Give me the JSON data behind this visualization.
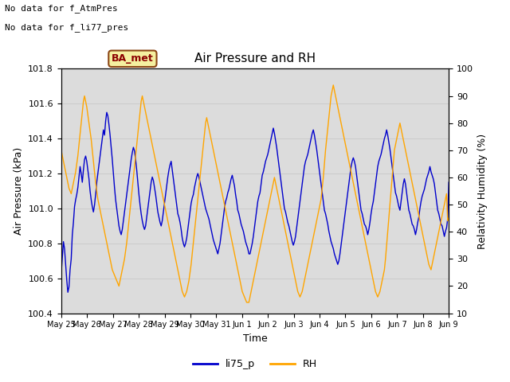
{
  "title": "Air Pressure and RH",
  "xlabel": "Time",
  "ylabel_left": "Air Pressure (kPa)",
  "ylabel_right": "Relativity Humidity (%)",
  "text_no_data_1": "No data for f_AtmPres",
  "text_no_data_2": "No data for f_li77_pres",
  "ba_met_label": "BA_met",
  "ylim_left": [
    100.4,
    101.8
  ],
  "ylim_right": [
    10,
    100
  ],
  "yticks_left": [
    100.4,
    100.6,
    100.8,
    101.0,
    101.2,
    101.4,
    101.6,
    101.8
  ],
  "yticks_right": [
    10,
    20,
    30,
    40,
    50,
    60,
    70,
    80,
    90,
    100
  ],
  "grid_color": "#cccccc",
  "bg_color_inner": "#dcdcdc",
  "bg_color_outer": "#f0f0f0",
  "line_color_blue": "#0000cc",
  "line_color_orange": "#ffa500",
  "legend_labels": [
    "li75_p",
    "RH"
  ],
  "n_days": 15,
  "xtick_labels": [
    "May 25",
    "May 26",
    "May 27",
    "May 28",
    "May 29",
    "May 30",
    "May 31",
    "Jun 1",
    "Jun 2",
    "Jun 3",
    "Jun 4",
    "Jun 5",
    "Jun 6",
    "Jun 7",
    "Jun 8",
    "Jun 9"
  ],
  "pressure_data": [
    100.63,
    100.72,
    100.81,
    100.77,
    100.68,
    100.59,
    100.52,
    100.55,
    100.65,
    100.71,
    100.85,
    100.92,
    101.01,
    101.05,
    101.08,
    101.12,
    101.18,
    101.24,
    101.2,
    101.15,
    101.22,
    101.28,
    101.3,
    101.27,
    101.22,
    101.17,
    101.1,
    101.05,
    101.01,
    100.98,
    101.02,
    101.08,
    101.15,
    101.2,
    101.25,
    101.3,
    101.35,
    101.4,
    101.45,
    101.42,
    101.5,
    101.55,
    101.53,
    101.48,
    101.42,
    101.35,
    101.28,
    101.2,
    101.12,
    101.05,
    101.0,
    100.95,
    100.9,
    100.87,
    100.85,
    100.88,
    100.93,
    100.98,
    101.03,
    101.08,
    101.13,
    101.18,
    101.23,
    101.28,
    101.32,
    101.35,
    101.33,
    101.28,
    101.22,
    101.15,
    101.08,
    101.02,
    100.97,
    100.93,
    100.9,
    100.88,
    100.9,
    100.95,
    101.0,
    101.05,
    101.1,
    101.15,
    101.18,
    101.16,
    101.12,
    101.08,
    101.03,
    100.98,
    100.95,
    100.92,
    100.9,
    100.93,
    100.98,
    101.03,
    101.08,
    101.13,
    101.18,
    101.22,
    101.25,
    101.27,
    101.22,
    101.17,
    101.12,
    101.07,
    101.02,
    100.97,
    100.95,
    100.92,
    100.88,
    100.83,
    100.8,
    100.78,
    100.8,
    100.83,
    100.88,
    100.93,
    100.98,
    101.03,
    101.06,
    101.08,
    101.12,
    101.15,
    101.18,
    101.2,
    101.18,
    101.15,
    101.12,
    101.09,
    101.06,
    101.03,
    101.0,
    100.98,
    100.96,
    100.94,
    100.91,
    100.88,
    100.85,
    100.82,
    100.8,
    100.78,
    100.76,
    100.74,
    100.77,
    100.8,
    100.85,
    100.9,
    100.95,
    101.0,
    101.04,
    101.06,
    101.09,
    101.11,
    101.14,
    101.17,
    101.19,
    101.16,
    101.13,
    101.08,
    101.04,
    100.99,
    100.97,
    100.94,
    100.91,
    100.89,
    100.87,
    100.84,
    100.81,
    100.79,
    100.77,
    100.74,
    100.74,
    100.77,
    100.8,
    100.84,
    100.89,
    100.94,
    100.99,
    101.04,
    101.07,
    101.09,
    101.14,
    101.19,
    101.21,
    101.24,
    101.27,
    101.29,
    101.31,
    101.34,
    101.37,
    101.4,
    101.43,
    101.46,
    101.43,
    101.39,
    101.35,
    101.3,
    101.25,
    101.2,
    101.15,
    101.1,
    101.05,
    101.0,
    100.98,
    100.95,
    100.92,
    100.9,
    100.87,
    100.84,
    100.81,
    100.79,
    100.81,
    100.84,
    100.89,
    100.94,
    100.99,
    101.04,
    101.09,
    101.14,
    101.19,
    101.24,
    101.27,
    101.29,
    101.31,
    101.34,
    101.37,
    101.4,
    101.43,
    101.45,
    101.42,
    101.38,
    101.34,
    101.29,
    101.24,
    101.19,
    101.14,
    101.09,
    101.04,
    100.99,
    100.97,
    100.94,
    100.91,
    100.87,
    100.84,
    100.81,
    100.79,
    100.77,
    100.74,
    100.72,
    100.7,
    100.68,
    100.7,
    100.74,
    100.79,
    100.84,
    100.89,
    100.94,
    100.99,
    101.04,
    101.09,
    101.14,
    101.19,
    101.24,
    101.27,
    101.29,
    101.27,
    101.24,
    101.19,
    101.14,
    101.09,
    101.04,
    100.99,
    100.97,
    100.94,
    100.91,
    100.9,
    100.88,
    100.85,
    100.88,
    100.92,
    100.97,
    101.01,
    101.04,
    101.09,
    101.14,
    101.19,
    101.24,
    101.27,
    101.29,
    101.31,
    101.34,
    101.37,
    101.4,
    101.42,
    101.45,
    101.42,
    101.38,
    101.34,
    101.29,
    101.24,
    101.19,
    101.14,
    101.09,
    101.07,
    101.04,
    101.01,
    100.99,
    101.04,
    101.09,
    101.14,
    101.17,
    101.14,
    101.09,
    101.04,
    100.99,
    100.97,
    100.94,
    100.91,
    100.9,
    100.88,
    100.85,
    100.88,
    100.92,
    100.95,
    101.0,
    101.04,
    101.07,
    101.09,
    101.11,
    101.14,
    101.17,
    101.19,
    101.21,
    101.24,
    101.21,
    101.19,
    101.17,
    101.14,
    101.09,
    101.04,
    100.99,
    100.97,
    100.94,
    100.91,
    100.9,
    100.87,
    100.84,
    100.87,
    100.89,
    100.94,
    101.15
  ],
  "rh_data": [
    70,
    68,
    66,
    64,
    62,
    60,
    58,
    56,
    55,
    54,
    56,
    58,
    60,
    62,
    65,
    68,
    72,
    76,
    80,
    84,
    88,
    90,
    88,
    86,
    83,
    80,
    77,
    74,
    70,
    66,
    62,
    58,
    55,
    52,
    50,
    48,
    46,
    44,
    42,
    40,
    38,
    36,
    34,
    32,
    30,
    28,
    26,
    25,
    24,
    23,
    22,
    21,
    20,
    22,
    24,
    26,
    28,
    30,
    33,
    36,
    40,
    44,
    48,
    52,
    56,
    60,
    64,
    68,
    72,
    76,
    80,
    84,
    88,
    90,
    88,
    86,
    84,
    82,
    80,
    78,
    76,
    74,
    72,
    70,
    68,
    66,
    64,
    62,
    60,
    58,
    56,
    54,
    52,
    50,
    48,
    46,
    44,
    42,
    40,
    38,
    36,
    34,
    32,
    30,
    28,
    26,
    24,
    22,
    20,
    18,
    17,
    16,
    17,
    18,
    20,
    22,
    25,
    28,
    32,
    36,
    40,
    44,
    48,
    52,
    56,
    60,
    64,
    68,
    72,
    76,
    80,
    82,
    80,
    78,
    76,
    74,
    72,
    70,
    68,
    66,
    64,
    62,
    60,
    58,
    56,
    54,
    52,
    50,
    48,
    46,
    44,
    42,
    40,
    38,
    36,
    34,
    32,
    30,
    28,
    26,
    24,
    22,
    20,
    18,
    17,
    16,
    15,
    14,
    14,
    14,
    16,
    18,
    20,
    22,
    24,
    26,
    28,
    30,
    32,
    34,
    36,
    38,
    40,
    42,
    44,
    46,
    48,
    50,
    52,
    54,
    56,
    58,
    60,
    58,
    56,
    54,
    52,
    50,
    48,
    46,
    44,
    42,
    40,
    38,
    36,
    34,
    32,
    30,
    28,
    26,
    24,
    22,
    20,
    18,
    17,
    16,
    17,
    18,
    20,
    22,
    24,
    26,
    28,
    30,
    32,
    34,
    36,
    38,
    40,
    42,
    44,
    46,
    48,
    50,
    52,
    56,
    60,
    65,
    70,
    74,
    78,
    82,
    86,
    90,
    92,
    94,
    92,
    90,
    88,
    86,
    84,
    82,
    80,
    78,
    76,
    74,
    72,
    70,
    68,
    66,
    64,
    62,
    60,
    58,
    56,
    54,
    52,
    50,
    48,
    46,
    44,
    42,
    40,
    38,
    36,
    34,
    32,
    30,
    28,
    26,
    24,
    22,
    20,
    18,
    17,
    16,
    17,
    18,
    20,
    22,
    24,
    26,
    30,
    35,
    40,
    45,
    50,
    55,
    60,
    65,
    70,
    72,
    74,
    76,
    78,
    80,
    78,
    76,
    74,
    72,
    70,
    68,
    66,
    64,
    62,
    60,
    58,
    56,
    54,
    52,
    50,
    48,
    46,
    44,
    42,
    40,
    38,
    36,
    34,
    32,
    30,
    28,
    27,
    26,
    28,
    30,
    32,
    34,
    36,
    38,
    40,
    42,
    44,
    46,
    48,
    50,
    52,
    54,
    44,
    45
  ]
}
